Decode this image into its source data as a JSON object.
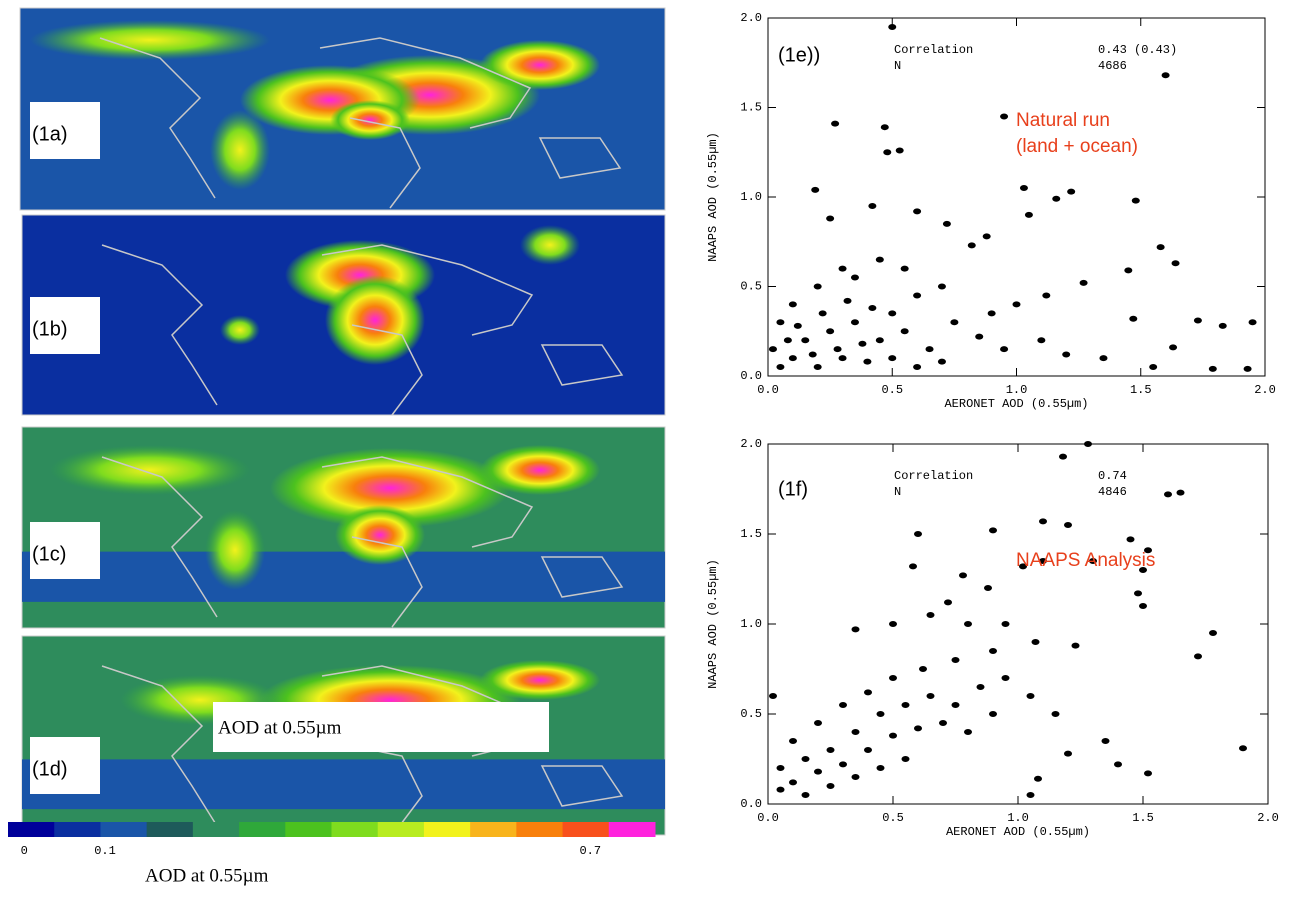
{
  "maps": [
    {
      "label": "(1a)"
    },
    {
      "label": "(1b)"
    },
    {
      "label": "(1c)"
    },
    {
      "label": "(1d)"
    }
  ],
  "map_overlay": "AOD at 0.55µm",
  "colorbar": {
    "colors": [
      "#00009a",
      "#0a2fa0",
      "#1a55a8",
      "#1e5a5a",
      "#2e8c5c",
      "#2fa83a",
      "#4cc21e",
      "#7fdc1e",
      "#b8ec20",
      "#f2f21c",
      "#f8b41c",
      "#f8800c",
      "#f8501c",
      "#ff22dd"
    ],
    "lim": [
      -0.02,
      0.78
    ],
    "ticks": [
      {
        "value": 0,
        "label": "0"
      },
      0.1,
      0.7
    ],
    "label": "AOD at 0.55µm"
  },
  "chart_data": [
    {
      "type": "scatter",
      "panel_label": "(1e))",
      "xlabel": "AERONET AOD (0.55µm)",
      "ylabel": "NAAPS AOD (0.55µm)",
      "stats": {
        "correlation_label": "Correlation",
        "correlation": "0.43 (0.43)",
        "n_label": "N",
        "n": 4686
      },
      "note": [
        "Natural run",
        "(land + ocean)"
      ],
      "note_color": "#e8401c",
      "color": "#000000",
      "xlim": [
        0,
        2
      ],
      "ylim": [
        0,
        2
      ],
      "xticks": [
        {
          "value": 0,
          "label": "0.0"
        },
        0.5,
        {
          "value": 1,
          "label": "1.0"
        },
        1.5,
        {
          "value": 2,
          "label": "2.0"
        }
      ],
      "yticks": [
        {
          "value": 0,
          "label": "0.0"
        },
        0.5,
        {
          "value": 1,
          "label": "1.0"
        },
        1.5,
        {
          "value": 2,
          "label": "2.0"
        }
      ],
      "x": [
        0.5,
        1.6,
        0.27,
        0.47,
        0.95,
        0.48,
        0.53,
        0.19,
        0.25,
        0.42,
        0.6,
        0.72,
        0.88,
        0.82,
        1.03,
        1.16,
        1.48,
        1.22,
        1.05,
        1.58,
        1.64,
        1.45,
        1.27,
        1.12,
        1.0,
        0.9,
        1.47,
        1.63,
        1.73,
        1.83,
        1.95,
        1.79,
        1.93,
        1.55,
        1.35,
        1.2,
        1.1,
        0.95,
        0.85,
        0.75,
        0.7,
        0.6,
        0.55,
        0.45,
        0.35,
        0.3,
        0.2,
        0.1,
        0.05,
        0.15,
        0.25,
        0.35,
        0.45,
        0.55,
        0.65,
        0.05,
        0.1,
        0.2,
        0.3,
        0.4,
        0.5,
        0.6,
        0.7,
        0.02,
        0.12,
        0.22,
        0.32,
        0.42,
        0.5,
        0.38,
        0.28,
        0.18,
        0.08
      ],
      "y": [
        1.95,
        1.68,
        1.41,
        1.39,
        1.45,
        1.25,
        1.26,
        1.04,
        0.88,
        0.95,
        0.92,
        0.85,
        0.78,
        0.73,
        1.05,
        0.99,
        0.98,
        1.03,
        0.9,
        0.72,
        0.63,
        0.59,
        0.52,
        0.45,
        0.4,
        0.35,
        0.32,
        0.16,
        0.31,
        0.28,
        0.3,
        0.04,
        0.04,
        0.05,
        0.1,
        0.12,
        0.2,
        0.15,
        0.22,
        0.3,
        0.5,
        0.45,
        0.6,
        0.65,
        0.55,
        0.6,
        0.5,
        0.4,
        0.3,
        0.2,
        0.25,
        0.3,
        0.2,
        0.25,
        0.15,
        0.05,
        0.1,
        0.05,
        0.1,
        0.08,
        0.1,
        0.05,
        0.08,
        0.15,
        0.28,
        0.35,
        0.42,
        0.38,
        0.35,
        0.18,
        0.15,
        0.12,
        0.2
      ]
    },
    {
      "type": "scatter",
      "panel_label": "(1f)",
      "xlabel": "AERONET AOD (0.55µm)",
      "ylabel": "NAAPS AOD (0.55µm)",
      "stats": {
        "correlation_label": "Correlation",
        "correlation": 0.74,
        "n_label": "N",
        "n": 4846
      },
      "note": [
        "NAAPS Analysis"
      ],
      "note_color": "#e8401c",
      "color": "#000000",
      "xlim": [
        0,
        2
      ],
      "ylim": [
        0,
        2
      ],
      "xticks": [
        {
          "value": 0,
          "label": "0.0"
        },
        0.5,
        {
          "value": 1,
          "label": "1.0"
        },
        1.5,
        {
          "value": 2,
          "label": "2.0"
        }
      ],
      "yticks": [
        {
          "value": 0,
          "label": "0.0"
        },
        0.5,
        {
          "value": 1,
          "label": "1.0"
        },
        1.5,
        {
          "value": 2,
          "label": "2.0"
        }
      ],
      "x": [
        1.28,
        1.18,
        1.6,
        1.65,
        1.1,
        1.2,
        0.6,
        0.9,
        1.45,
        1.52,
        1.5,
        1.3,
        1.1,
        1.02,
        0.58,
        0.78,
        0.88,
        1.48,
        1.5,
        0.72,
        0.35,
        0.5,
        0.65,
        0.8,
        0.95,
        1.78,
        1.72,
        1.23,
        1.07,
        0.9,
        0.75,
        0.62,
        0.5,
        0.4,
        0.3,
        0.2,
        0.1,
        0.05,
        0.15,
        0.25,
        0.35,
        0.45,
        0.55,
        0.65,
        0.75,
        0.85,
        0.95,
        1.05,
        1.15,
        1.2,
        1.35,
        1.4,
        1.52,
        1.9,
        1.08,
        1.05,
        0.02,
        0.05,
        0.1,
        0.2,
        0.3,
        0.4,
        0.5,
        0.6,
        0.7,
        0.8,
        0.9,
        0.15,
        0.25,
        0.35,
        0.45,
        0.55
      ],
      "y": [
        2.0,
        1.93,
        1.72,
        1.73,
        1.57,
        1.55,
        1.5,
        1.52,
        1.47,
        1.41,
        1.3,
        1.35,
        1.35,
        1.32,
        1.32,
        1.27,
        1.2,
        1.17,
        1.1,
        1.12,
        0.97,
        1.0,
        1.05,
        1.0,
        1.0,
        0.95,
        0.82,
        0.88,
        0.9,
        0.85,
        0.8,
        0.75,
        0.7,
        0.62,
        0.55,
        0.45,
        0.35,
        0.2,
        0.25,
        0.3,
        0.4,
        0.5,
        0.55,
        0.6,
        0.55,
        0.65,
        0.7,
        0.6,
        0.5,
        0.28,
        0.35,
        0.22,
        0.17,
        0.31,
        0.14,
        0.05,
        0.6,
        0.08,
        0.12,
        0.18,
        0.22,
        0.3,
        0.38,
        0.42,
        0.45,
        0.4,
        0.5,
        0.05,
        0.1,
        0.15,
        0.2,
        0.25
      ]
    }
  ]
}
